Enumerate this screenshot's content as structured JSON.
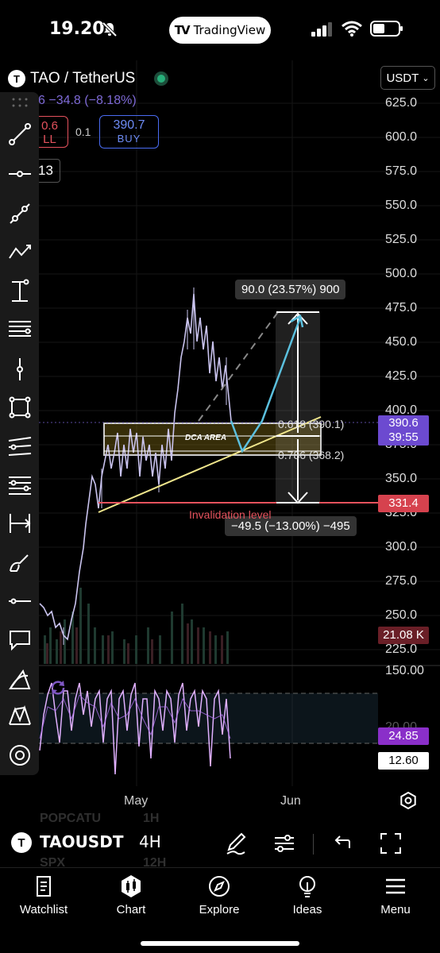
{
  "status": {
    "time": "19.20",
    "pill_label": "TradingView",
    "pill_logo": "TV"
  },
  "symbol": {
    "name": "TAO / TetherUS",
    "icon_letter": "T",
    "change": "6 −34.8 (−8.18%)",
    "sell_price": "0.6",
    "sell_label": "LL",
    "spread": "0.1",
    "buy_price": "390.7",
    "buy_label": "BUY",
    "interval_partial": "13",
    "currency": "USDT"
  },
  "price_axis": [
    "625.0",
    "600.0",
    "575.0",
    "550.0",
    "525.0",
    "500.0",
    "475.0",
    "450.0",
    "425.0",
    "400.0",
    "375.0",
    "350.0",
    "325.0",
    "300.0",
    "275.0",
    "250.0",
    "225.0"
  ],
  "indicator_axis": {
    "top": "150.00",
    "value": "24.85",
    "mid": "20.00",
    "bottom_value": "12.60"
  },
  "badges": {
    "last_price": "390.6",
    "countdown": "39:55",
    "invalidation": "331.4",
    "volume": "21.08 K"
  },
  "annotations": {
    "target": "90.0 (23.57%) 900",
    "stop": "−49.5 (−13.00%) −495",
    "fib1": "0.618 (390.1)",
    "fib2": "0.786 (368.2)",
    "dca": "DCA AREA",
    "invalidation": "Invalidation level"
  },
  "months": [
    "May",
    "Jun"
  ],
  "bottom_bar": {
    "ticker": "TAOUSDT",
    "timeframe": "4H",
    "ghost_top": "POPCATU",
    "ghost_top_tf": "1H",
    "ghost_bottom": "SPX",
    "ghost_bottom_tf": "12H"
  },
  "tabs": [
    {
      "label": "Watchlist",
      "icon": "list-icon"
    },
    {
      "label": "Chart",
      "icon": "chart-icon"
    },
    {
      "label": "Explore",
      "icon": "compass-icon"
    },
    {
      "label": "Ideas",
      "icon": "lightbulb-icon"
    },
    {
      "label": "Menu",
      "icon": "menu-icon"
    }
  ],
  "colors": {
    "accent_purple": "#7e57c2",
    "sell_red": "#e5525d",
    "buy_blue": "#4a6cf2",
    "fib_line": "#f0e68c",
    "projection": "#5bc0de",
    "stoch": "#e0b0ff"
  }
}
